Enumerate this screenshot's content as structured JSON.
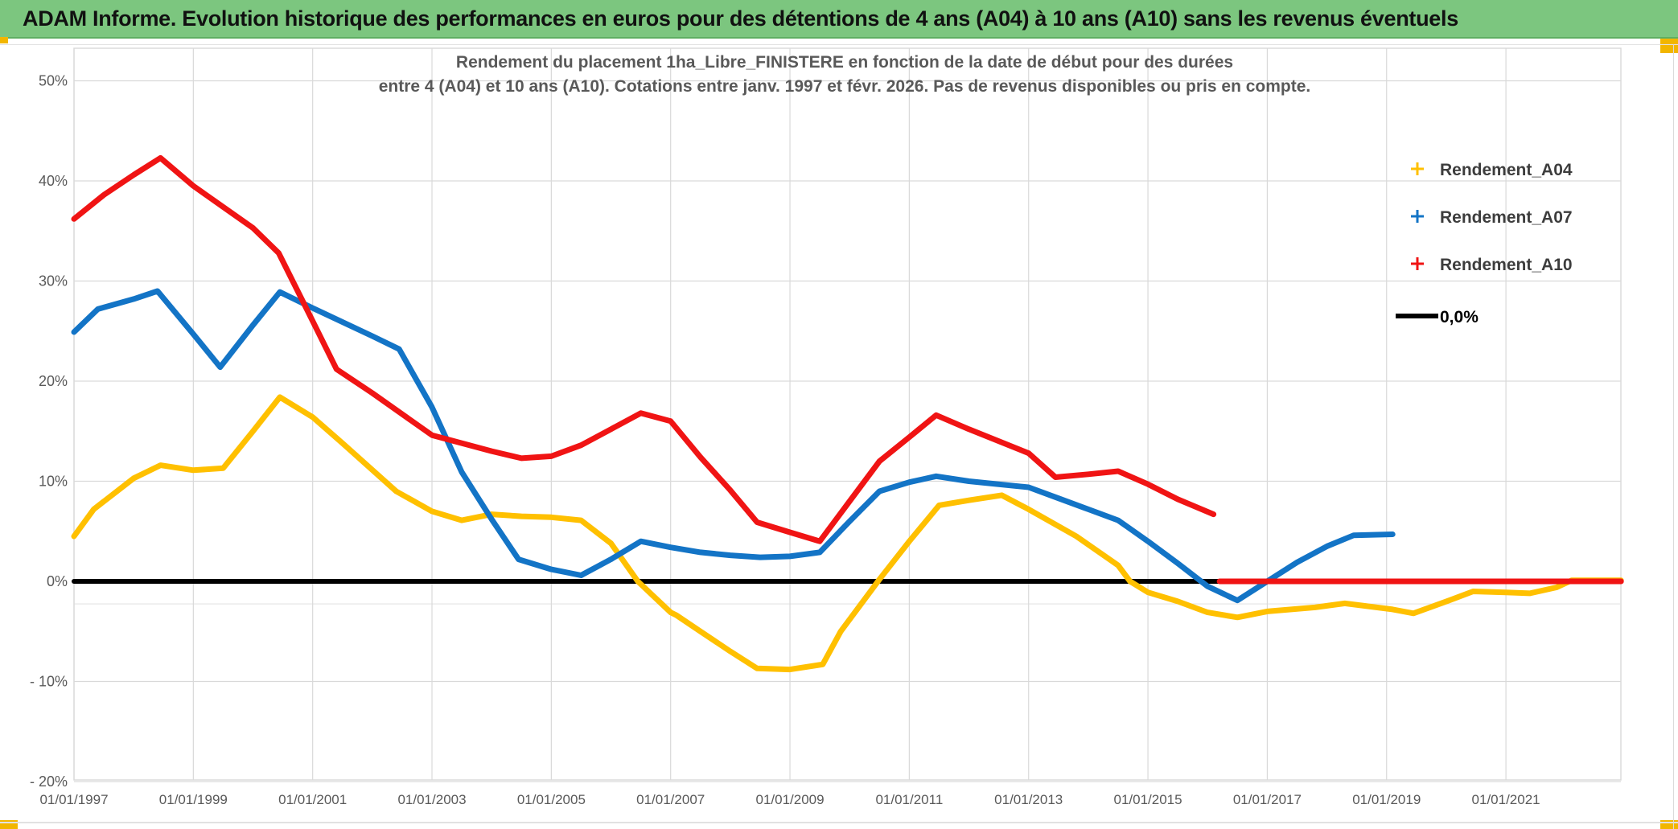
{
  "window": {
    "title": "ADAM Informe. Evolution historique des performances en euros pour des détentions de 4 ans (A04) à 10 ans (A10) sans les revenus éventuels"
  },
  "chart_data": {
    "type": "line",
    "title_line1": "Rendement du placement 1ha_Libre_FINISTERE en fonction de la date de début pour des durées",
    "title_line2": "entre 4 (A04) et 10 ans (A10). Cotations entre janv. 1997 et févr. 2026. Pas de revenus disponibles ou pris en compte.",
    "x_axis": {
      "tick_years": [
        1997,
        1999,
        2001,
        2003,
        2005,
        2007,
        2009,
        2011,
        2013,
        2015,
        2017,
        2019,
        2021
      ],
      "tick_labels": [
        "01/01/1997",
        "01/01/1999",
        "01/01/2001",
        "01/01/2003",
        "01/01/2005",
        "01/01/2007",
        "01/01/2009",
        "01/01/2011",
        "01/01/2013",
        "01/01/2015",
        "01/01/2017",
        "01/01/2019",
        "01/01/2021"
      ],
      "range_years": [
        1997.0,
        2022.93
      ]
    },
    "y_axis": {
      "unit": "%",
      "tick_values": [
        50,
        40,
        30,
        20,
        10,
        0,
        -10,
        -20
      ],
      "tick_labels": [
        "50%",
        "40%",
        "30%",
        "20%",
        "10%",
        "0%",
        "- 10%",
        "- 20%"
      ],
      "range": [
        -20,
        50
      ],
      "grid": true
    },
    "legend": [
      {
        "label": "Rendement_A04",
        "marker": "plus",
        "color": "#FFC000"
      },
      {
        "label": "Rendement_A07",
        "marker": "plus",
        "color": "#1374C6"
      },
      {
        "label": "Rendement_A10",
        "marker": "plus",
        "color": "#F01414"
      },
      {
        "label": "0,0%",
        "marker": "line",
        "color": "#000000"
      }
    ],
    "series": [
      {
        "name": "zero-reference",
        "legend_label": "0,0%",
        "color": "#000000",
        "width": 6,
        "points": [
          [
            1997.0,
            0.0
          ],
          [
            2022.93,
            0.0
          ]
        ]
      },
      {
        "name": "Rendement_A04",
        "color": "#FFC000",
        "width": 7,
        "points": [
          [
            1997.0,
            4.5
          ],
          [
            1997.33,
            7.2
          ],
          [
            1998.0,
            10.3
          ],
          [
            1998.45,
            11.6
          ],
          [
            1999.0,
            11.1
          ],
          [
            1999.5,
            11.3
          ],
          [
            2000.0,
            15.0
          ],
          [
            2000.45,
            18.4
          ],
          [
            2001.0,
            16.4
          ],
          [
            2001.5,
            13.8
          ],
          [
            2002.4,
            9.0
          ],
          [
            2003.0,
            7.0
          ],
          [
            2003.5,
            6.1
          ],
          [
            2004.0,
            6.7
          ],
          [
            2004.5,
            6.5
          ],
          [
            2005.0,
            6.4
          ],
          [
            2005.5,
            6.1
          ],
          [
            2006.0,
            3.8
          ],
          [
            2006.45,
            0.0
          ],
          [
            2007.0,
            -3.1
          ],
          [
            2007.1,
            -3.4
          ],
          [
            2007.5,
            -5.0
          ],
          [
            2008.0,
            -7.0
          ],
          [
            2008.45,
            -8.7
          ],
          [
            2009.0,
            -8.8
          ],
          [
            2009.55,
            -8.3
          ],
          [
            2009.85,
            -5.0
          ],
          [
            2010.5,
            0.2
          ],
          [
            2011.0,
            4.0
          ],
          [
            2011.5,
            7.6
          ],
          [
            2012.0,
            8.1
          ],
          [
            2012.55,
            8.6
          ],
          [
            2013.0,
            7.2
          ],
          [
            2013.8,
            4.5
          ],
          [
            2014.5,
            1.6
          ],
          [
            2014.7,
            0.0
          ],
          [
            2015.0,
            -1.1
          ],
          [
            2015.5,
            -2.0
          ],
          [
            2016.0,
            -3.1
          ],
          [
            2016.5,
            -3.6
          ],
          [
            2017.0,
            -3.0
          ],
          [
            2017.8,
            -2.6
          ],
          [
            2018.3,
            -2.2
          ],
          [
            2019.1,
            -2.8
          ],
          [
            2019.45,
            -3.2
          ],
          [
            2020.05,
            -1.9
          ],
          [
            2020.45,
            -1.0
          ],
          [
            2021.0,
            -1.1
          ],
          [
            2021.4,
            -1.2
          ],
          [
            2021.85,
            -0.6
          ],
          [
            2022.1,
            0.1
          ],
          [
            2022.93,
            0.1
          ]
        ]
      },
      {
        "name": "Rendement_A07",
        "color": "#1374C6",
        "width": 7,
        "points": [
          [
            1997.0,
            24.9
          ],
          [
            1997.4,
            27.2
          ],
          [
            1998.0,
            28.2
          ],
          [
            1998.4,
            29.0
          ],
          [
            1999.0,
            24.7
          ],
          [
            1999.45,
            21.4
          ],
          [
            2000.0,
            25.6
          ],
          [
            2000.45,
            28.9
          ],
          [
            2001.0,
            27.3
          ],
          [
            2002.0,
            24.5
          ],
          [
            2002.45,
            23.2
          ],
          [
            2003.0,
            17.4
          ],
          [
            2003.5,
            10.9
          ],
          [
            2004.0,
            6.2
          ],
          [
            2004.45,
            2.2
          ],
          [
            2005.0,
            1.2
          ],
          [
            2005.5,
            0.6
          ],
          [
            2006.0,
            2.2
          ],
          [
            2006.5,
            4.0
          ],
          [
            2007.0,
            3.4
          ],
          [
            2007.5,
            2.9
          ],
          [
            2008.0,
            2.6
          ],
          [
            2008.5,
            2.4
          ],
          [
            2009.0,
            2.5
          ],
          [
            2009.5,
            2.9
          ],
          [
            2010.0,
            6.0
          ],
          [
            2010.5,
            9.0
          ],
          [
            2011.0,
            9.9
          ],
          [
            2011.45,
            10.5
          ],
          [
            2012.0,
            10.0
          ],
          [
            2013.0,
            9.4
          ],
          [
            2013.5,
            8.3
          ],
          [
            2014.0,
            7.2
          ],
          [
            2014.5,
            6.1
          ],
          [
            2015.0,
            4.0
          ],
          [
            2015.5,
            1.8
          ],
          [
            2016.0,
            -0.5
          ],
          [
            2016.5,
            -1.9
          ],
          [
            2017.0,
            0.0
          ],
          [
            2017.5,
            1.9
          ],
          [
            2018.0,
            3.5
          ],
          [
            2018.45,
            4.6
          ],
          [
            2019.1,
            4.7
          ]
        ]
      },
      {
        "name": "Rendement_A10",
        "color": "#F01414",
        "width": 7,
        "points": [
          [
            1997.0,
            36.2
          ],
          [
            1997.5,
            38.6
          ],
          [
            1998.0,
            40.6
          ],
          [
            1998.45,
            42.3
          ],
          [
            1999.0,
            39.5
          ],
          [
            1999.5,
            37.4
          ],
          [
            2000.0,
            35.3
          ],
          [
            2000.43,
            32.8
          ],
          [
            2001.0,
            26.0
          ],
          [
            2001.4,
            21.2
          ],
          [
            2002.0,
            18.8
          ],
          [
            2003.0,
            14.6
          ],
          [
            2004.0,
            13.0
          ],
          [
            2004.5,
            12.3
          ],
          [
            2005.0,
            12.5
          ],
          [
            2005.5,
            13.6
          ],
          [
            2006.0,
            15.2
          ],
          [
            2006.5,
            16.8
          ],
          [
            2007.0,
            16.0
          ],
          [
            2007.5,
            12.4
          ],
          [
            2008.0,
            9.1
          ],
          [
            2008.45,
            5.9
          ],
          [
            2009.0,
            4.9
          ],
          [
            2009.5,
            4.0
          ],
          [
            2010.0,
            8.0
          ],
          [
            2010.5,
            12.0
          ],
          [
            2011.0,
            14.4
          ],
          [
            2011.45,
            16.6
          ],
          [
            2012.0,
            15.2
          ],
          [
            2013.0,
            12.8
          ],
          [
            2013.45,
            10.4
          ],
          [
            2014.0,
            10.7
          ],
          [
            2014.5,
            11.0
          ],
          [
            2015.0,
            9.7
          ],
          [
            2015.5,
            8.2
          ],
          [
            2016.1,
            6.7
          ]
        ]
      },
      {
        "name": "Rendement_A10-zero-tail",
        "color": "#F01414",
        "width": 7,
        "points": [
          [
            2016.2,
            0.0
          ],
          [
            2022.93,
            0.0
          ]
        ]
      }
    ]
  }
}
